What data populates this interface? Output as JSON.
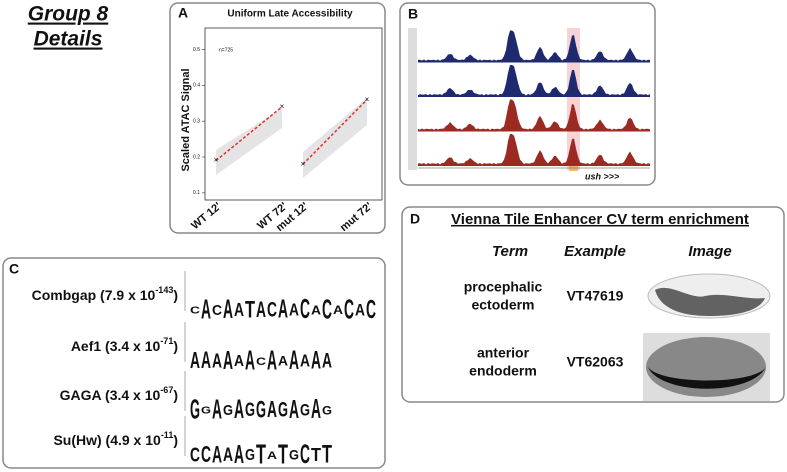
{
  "heading": [
    "Group 8",
    "Details"
  ],
  "chart_data": {
    "type": "line",
    "panel": "A",
    "title": "Uniform Late Accessibility",
    "y_label": "Scaled ATAC Signal",
    "annotation": "n=725",
    "categories": [
      "WT 12'",
      "WT 72'",
      "mut 12'",
      "mut 72'"
    ],
    "series": [
      {
        "color": "#e0302a",
        "values": [
          0.19,
          0.34,
          null,
          null
        ]
      },
      {
        "color": "#e0302a",
        "values": [
          null,
          null,
          0.18,
          0.36
        ]
      }
    ],
    "ylim": [
      0.08,
      0.56
    ],
    "yticks": [
      0.1,
      0.2,
      0.3,
      0.4,
      0.5
    ],
    "grid": false
  },
  "panel_b": {
    "panel": "B",
    "gene": "ush >>>"
  },
  "panel_c": {
    "panel": "C",
    "motifs": [
      {
        "text": "Combgap (7.9 x 10",
        "exp": "-143",
        "end": ")",
        "logo": [
          "C",
          "A",
          "C",
          "A",
          "A",
          "T",
          "A",
          "C",
          "A",
          "A",
          "C",
          "A",
          "C",
          "A",
          "C",
          "A",
          "C"
        ]
      },
      {
        "text": "Aef1 (3.4 x 10",
        "exp": "-71",
        "end": ")",
        "logo": [
          "A",
          "A",
          "A",
          "A",
          "A",
          "A",
          "C",
          "A",
          "A",
          "A",
          "A",
          "A",
          "A"
        ]
      },
      {
        "text": "GAGA (3.4 x 10",
        "exp": "-67",
        "end": ")",
        "logo": [
          "G",
          "G",
          "A",
          "G",
          "A",
          "G",
          "G",
          "A",
          "G",
          "A",
          "G",
          "A",
          "G"
        ]
      },
      {
        "text": "Su(Hw) (4.9 x 10",
        "exp": "-11",
        "end": ")",
        "logo": [
          "C",
          "C",
          "A",
          "A",
          "A",
          "G",
          "T",
          "A",
          "T",
          "G",
          "C",
          "T",
          "T"
        ]
      }
    ]
  },
  "panel_d": {
    "panel": "D",
    "title": "Vienna Tile Enhancer CV term enrichment",
    "headers": [
      "Term",
      "Example",
      "Image"
    ],
    "rows": [
      {
        "term": [
          "procephalic",
          "ectoderm"
        ],
        "example": "VT47619"
      },
      {
        "term": [
          "anterior",
          "endoderm"
        ],
        "example": "VT62063"
      }
    ]
  }
}
